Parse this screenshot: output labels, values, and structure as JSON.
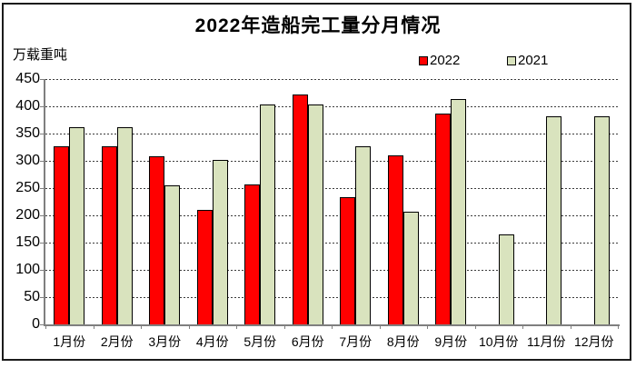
{
  "title": "2022年造船完工量分月情况",
  "y_axis_unit": "万载重吨",
  "chart_data": {
    "type": "bar",
    "title": "2022年造船完工量分月情况",
    "xlabel": "",
    "ylabel": "万载重吨",
    "ylim": [
      0,
      450
    ],
    "yticks": [
      0,
      50,
      100,
      150,
      200,
      250,
      300,
      350,
      400,
      450
    ],
    "grid": true,
    "legend_position": "top-right",
    "categories": [
      "1月份",
      "2月份",
      "3月份",
      "4月份",
      "5月份",
      "6月份",
      "7月份",
      "8月份",
      "9月份",
      "10月份",
      "11月份",
      "12月份"
    ],
    "series": [
      {
        "name": "2022",
        "color": "#FF0000",
        "values": [
          327,
          327,
          308,
          210,
          256,
          421,
          234,
          310,
          386,
          null,
          null,
          null
        ]
      },
      {
        "name": "2021",
        "color": "#D9E3BE",
        "values": [
          361,
          361,
          255,
          302,
          404,
          404,
          326,
          206,
          414,
          165,
          381,
          381
        ]
      }
    ]
  },
  "colors": {
    "series_2022": "#FF0000",
    "series_2021": "#D9E3BE",
    "bar_border": "#000000",
    "axis": "#7f7f7f",
    "frame_border": "#1b1b1b",
    "background": "#ffffff"
  }
}
